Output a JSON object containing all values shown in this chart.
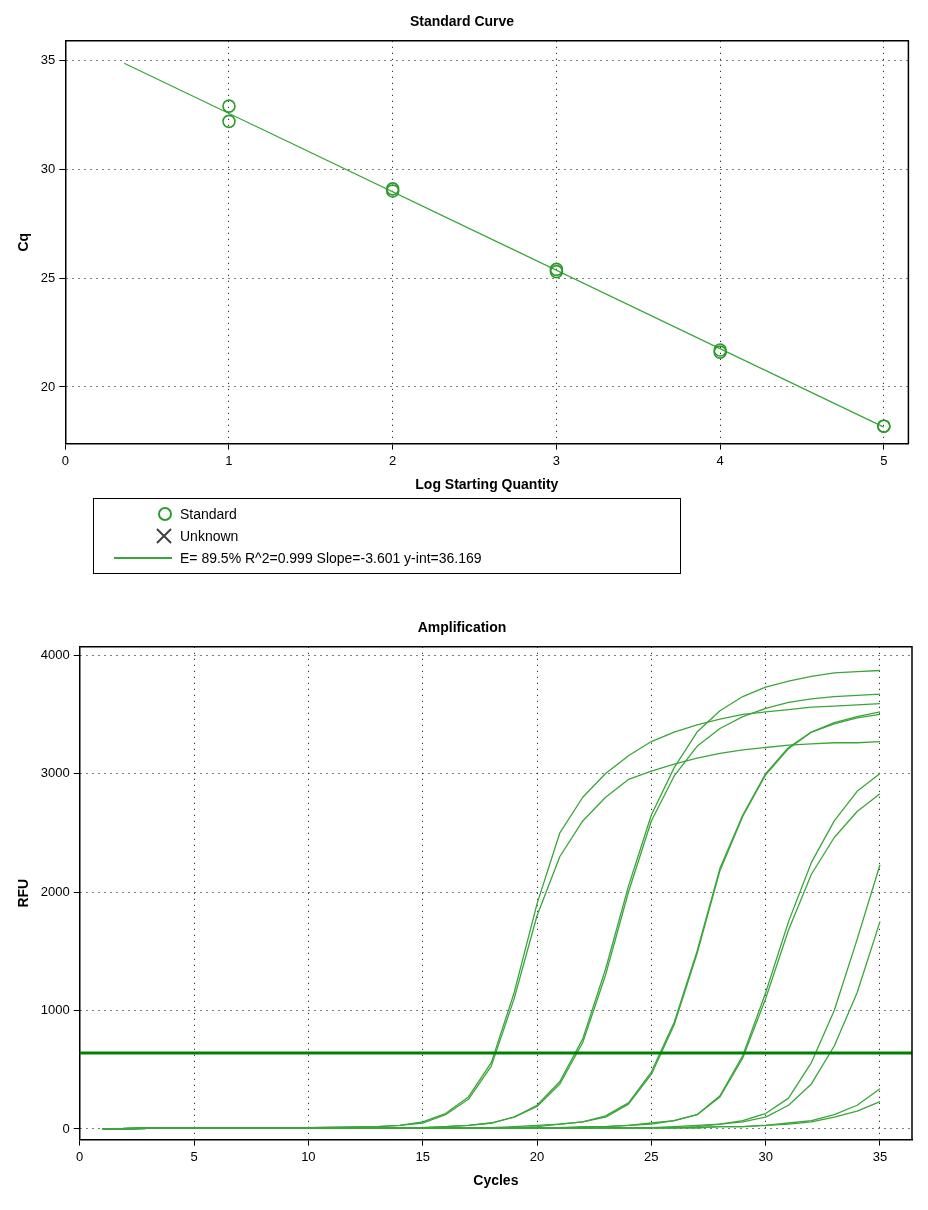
{
  "chart_data": [
    {
      "type": "scatter",
      "title": "Standard Curve",
      "xlabel": "Log Starting Quantity",
      "ylabel": "Cq",
      "xlim": [
        0,
        5.15
      ],
      "ylim": [
        17.4,
        35.9
      ],
      "xticks": [
        0,
        1,
        2,
        3,
        4,
        5
      ],
      "yticks": [
        20,
        25,
        30,
        35
      ],
      "grid": true,
      "legend": "bottom",
      "series": [
        {
          "name": "Standard",
          "marker": "circle",
          "color": "#2e9a2e",
          "x": [
            1,
            1,
            2,
            2,
            3,
            3,
            4,
            4,
            5,
            5
          ],
          "values": [
            32.9,
            32.2,
            29.0,
            29.1,
            25.3,
            25.4,
            21.6,
            21.7,
            18.2,
            18.2
          ]
        },
        {
          "name": "Unknown",
          "marker": "cross",
          "color": "#404040"
        },
        {
          "name": "E= 89.5% R^2=0.999 Slope=-3.601 y-int=36.169",
          "type": "line",
          "marker": "none",
          "color": "#3aa63a",
          "x": [
            0.36,
            5
          ],
          "values": [
            34.87,
            18.16
          ]
        }
      ]
    },
    {
      "type": "line",
      "title": "Amplification",
      "xlabel": "Cycles",
      "ylabel": "RFU",
      "xlim": [
        0,
        36.4
      ],
      "ylim": [
        -90,
        4070
      ],
      "xticks": [
        0,
        5,
        10,
        15,
        20,
        25,
        30,
        35
      ],
      "yticks": [
        0,
        1000,
        2000,
        3000,
        4000
      ],
      "grid": true,
      "marker": "none",
      "x": [
        1,
        5,
        10,
        13,
        14,
        15,
        16,
        17,
        18,
        19,
        20,
        21,
        22,
        23,
        24,
        25,
        26,
        27,
        28,
        29,
        30,
        31,
        32,
        33,
        34,
        35
      ],
      "ref_lines": [
        {
          "axis": "y",
          "value": 640,
          "color": "#008000"
        }
      ],
      "series": [
        {
          "color": "#3aa63a",
          "values": [
            0,
            10,
            10,
            20,
            30,
            60,
            130,
            270,
            560,
            1150,
            1900,
            2500,
            2800,
            3000,
            3150,
            3270,
            3350,
            3410,
            3460,
            3500,
            3520,
            3540,
            3560,
            3570,
            3580,
            3590
          ]
        },
        {
          "color": "#3aa63a",
          "values": [
            0,
            10,
            10,
            20,
            30,
            50,
            120,
            250,
            530,
            1100,
            1800,
            2300,
            2600,
            2800,
            2950,
            3020,
            3080,
            3130,
            3170,
            3200,
            3220,
            3240,
            3250,
            3260,
            3260,
            3270
          ]
        },
        {
          "color": "#3aa63a",
          "values": [
            0,
            10,
            10,
            10,
            10,
            10,
            20,
            30,
            50,
            100,
            200,
            400,
            760,
            1350,
            2050,
            2650,
            3050,
            3350,
            3530,
            3650,
            3730,
            3780,
            3820,
            3850,
            3860,
            3870
          ]
        },
        {
          "color": "#3aa63a",
          "values": [
            0,
            10,
            10,
            10,
            10,
            10,
            20,
            30,
            50,
            100,
            190,
            380,
            730,
            1300,
            2000,
            2600,
            2980,
            3230,
            3380,
            3480,
            3550,
            3600,
            3630,
            3650,
            3660,
            3670
          ]
        },
        {
          "color": "#3aa63a",
          "values": [
            0,
            10,
            10,
            10,
            10,
            10,
            10,
            10,
            10,
            20,
            30,
            40,
            60,
            110,
            220,
            480,
            900,
            1500,
            2200,
            2650,
            3000,
            3220,
            3350,
            3430,
            3480,
            3520
          ]
        },
        {
          "color": "#3aa63a",
          "values": [
            0,
            10,
            10,
            10,
            10,
            10,
            10,
            10,
            10,
            10,
            20,
            40,
            60,
            100,
            210,
            460,
            880,
            1480,
            2180,
            2640,
            2990,
            3210,
            3350,
            3420,
            3470,
            3500
          ]
        },
        {
          "color": "#3aa63a",
          "values": [
            0,
            10,
            10,
            10,
            10,
            10,
            10,
            10,
            10,
            10,
            10,
            10,
            20,
            20,
            30,
            50,
            70,
            120,
            280,
            620,
            1150,
            1750,
            2250,
            2600,
            2850,
            3000
          ]
        },
        {
          "color": "#3aa63a",
          "values": [
            0,
            10,
            10,
            10,
            10,
            10,
            10,
            10,
            10,
            10,
            10,
            10,
            10,
            20,
            30,
            40,
            70,
            120,
            270,
            600,
            1100,
            1680,
            2150,
            2460,
            2680,
            2830
          ]
        },
        {
          "color": "#3aa63a",
          "values": [
            0,
            10,
            10,
            10,
            10,
            10,
            10,
            10,
            10,
            10,
            10,
            10,
            10,
            10,
            10,
            10,
            20,
            30,
            40,
            70,
            130,
            260,
            560,
            1000,
            1600,
            2230
          ]
        },
        {
          "color": "#3aa63a",
          "values": [
            0,
            10,
            10,
            10,
            10,
            10,
            10,
            10,
            10,
            10,
            10,
            10,
            10,
            10,
            10,
            10,
            10,
            20,
            40,
            60,
            100,
            200,
            380,
            700,
            1150,
            1750
          ]
        },
        {
          "color": "#3aa63a",
          "values": [
            0,
            10,
            10,
            10,
            10,
            10,
            10,
            10,
            10,
            10,
            10,
            10,
            10,
            10,
            10,
            10,
            10,
            10,
            20,
            20,
            30,
            50,
            70,
            120,
            200,
            340
          ]
        },
        {
          "color": "#3aa63a",
          "values": [
            0,
            10,
            10,
            10,
            10,
            10,
            10,
            10,
            10,
            10,
            10,
            10,
            10,
            10,
            10,
            10,
            10,
            10,
            20,
            20,
            30,
            40,
            60,
            100,
            150,
            230
          ]
        }
      ]
    }
  ]
}
